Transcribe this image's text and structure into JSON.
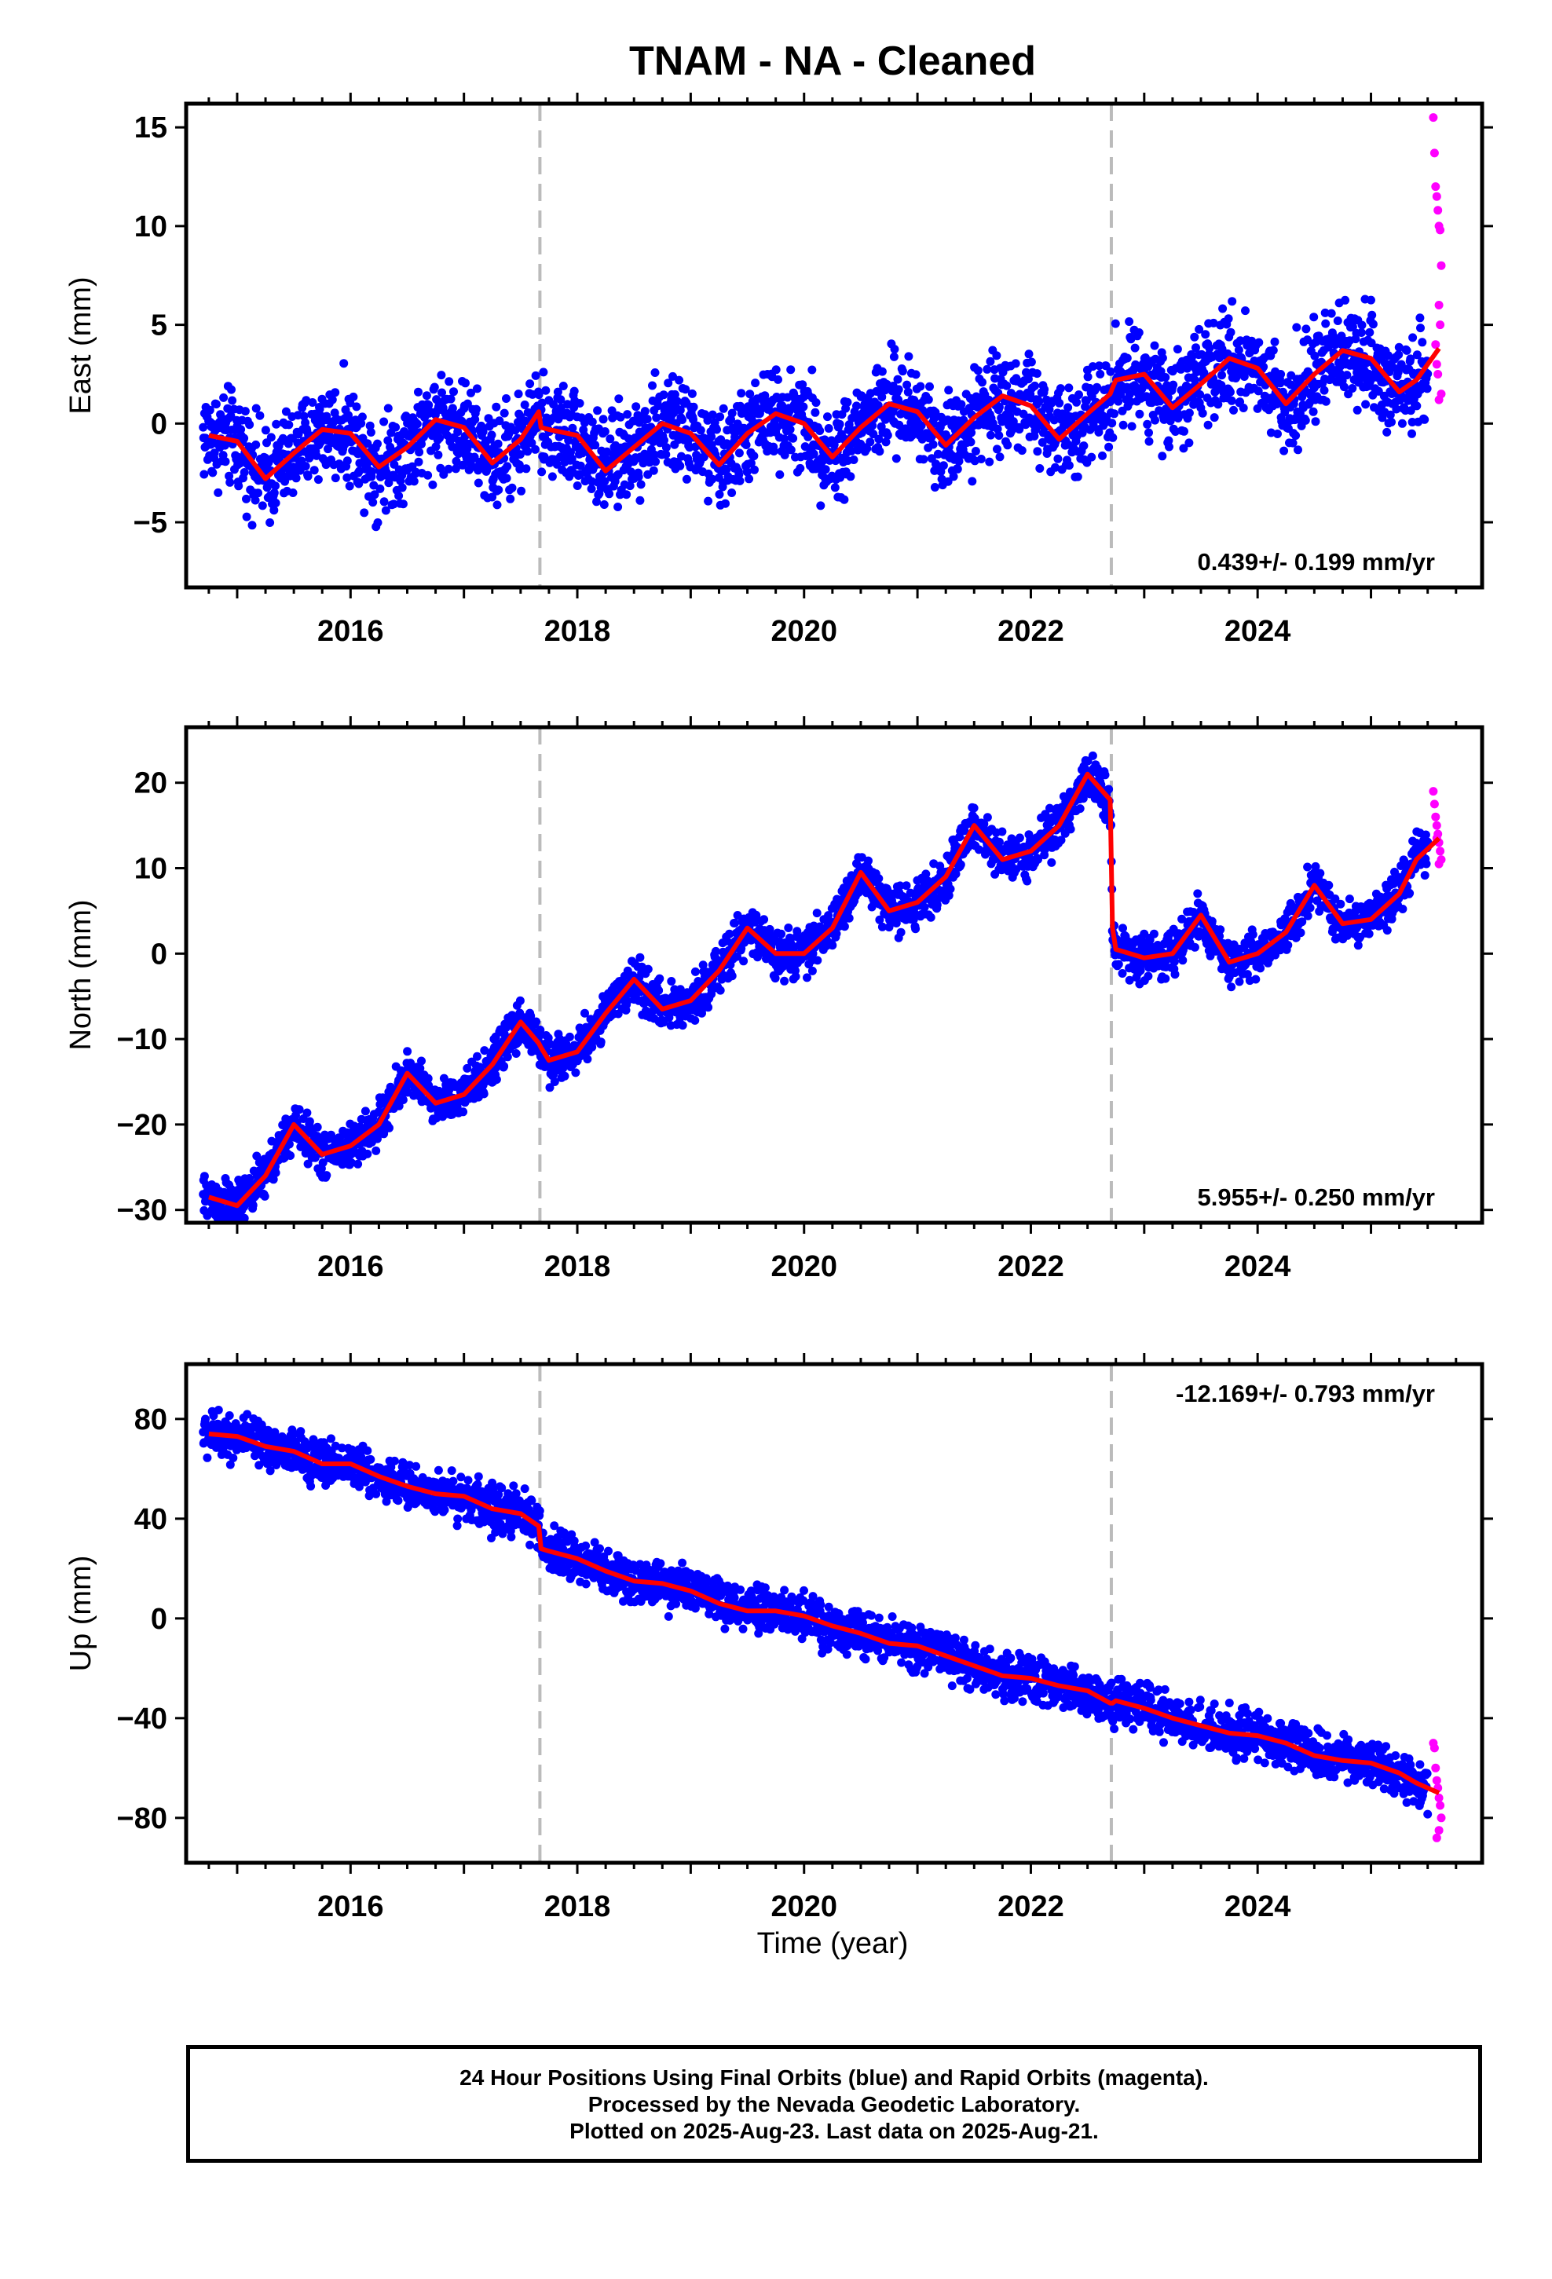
{
  "title": "TNAM  - NA - Cleaned",
  "xlabel": "Time (year)",
  "colors": {
    "final": "#0000ff",
    "rapid": "#ff00ff",
    "model": "#ff0000",
    "steps": "#bbbbbb",
    "frame": "#000000"
  },
  "footer": {
    "line1": "24 Hour Positions Using Final Orbits (blue) and Rapid Orbits (magenta).",
    "line2": "Processed by the Nevada Geodetic Laboratory.",
    "line3": "Plotted on 2025-Aug-23. Last data on 2025-Aug-21."
  },
  "chart_data": [
    {
      "type": "scatter",
      "title": "TNAM  - NA - Cleaned",
      "ylabel": "East (mm)",
      "xlabel": "",
      "xlim": [
        2014.55,
        2025.98
      ],
      "ylim": [
        -8.3,
        16.2
      ],
      "xticks": [
        2016,
        2018,
        2020,
        2022,
        2024
      ],
      "xtick_labels": [
        "2016",
        "2018",
        "2020",
        "2022",
        "2024"
      ],
      "yticks": [
        -5,
        0,
        5,
        10,
        15
      ],
      "ytick_labels": [
        "−5",
        "0",
        "5",
        "10",
        "15"
      ],
      "rate_label": "0.439+/- 0.199 mm/yr",
      "rate_position": "bottom-right",
      "step_epochs": [
        2017.67,
        2022.71
      ],
      "model": {
        "name": "model",
        "x": [
          2014.75,
          2015.0,
          2015.25,
          2015.5,
          2015.75,
          2016.0,
          2016.25,
          2016.5,
          2016.75,
          2017.0,
          2017.25,
          2017.5,
          2017.66,
          2017.68,
          2017.75,
          2018.0,
          2018.25,
          2018.5,
          2018.75,
          2019.0,
          2019.25,
          2019.5,
          2019.75,
          2020.0,
          2020.25,
          2020.5,
          2020.75,
          2021.0,
          2021.25,
          2021.5,
          2021.75,
          2022.0,
          2022.25,
          2022.5,
          2022.7,
          2022.72,
          2022.75,
          2023.0,
          2023.25,
          2023.5,
          2023.75,
          2024.0,
          2024.25,
          2024.5,
          2024.75,
          2025.0,
          2025.25,
          2025.4,
          2025.6
        ],
        "y": [
          -0.6,
          -0.9,
          -2.8,
          -1.5,
          -0.3,
          -0.5,
          -2.2,
          -1.2,
          0.2,
          -0.2,
          -2.0,
          -0.8,
          0.6,
          -0.2,
          -0.3,
          -0.6,
          -2.4,
          -1.2,
          0.0,
          -0.5,
          -2.1,
          -0.5,
          0.5,
          0.0,
          -1.7,
          -0.2,
          1.0,
          0.6,
          -1.1,
          0.3,
          1.4,
          0.9,
          -0.8,
          0.5,
          1.5,
          1.8,
          2.2,
          2.5,
          0.8,
          2.0,
          3.3,
          2.8,
          1.0,
          2.5,
          3.7,
          3.3,
          1.6,
          2.2,
          3.8
        ]
      },
      "final_series": {
        "name": "Final Orbits",
        "t_start": 2014.7,
        "t_end": 2025.5,
        "noise_mm": 1.2,
        "count": 2700
      },
      "rapid_series": {
        "name": "Rapid Orbits",
        "x": [
          2025.55,
          2025.56,
          2025.57,
          2025.58,
          2025.59,
          2025.6,
          2025.61,
          2025.62,
          2025.6,
          2025.61,
          2025.57,
          2025.58,
          2025.59,
          2025.62,
          2025.6
        ],
        "y": [
          15.5,
          13.7,
          12.0,
          11.5,
          10.8,
          10.0,
          9.8,
          8.0,
          6.0,
          5.0,
          4.0,
          3.0,
          2.5,
          1.5,
          1.2
        ]
      }
    },
    {
      "type": "scatter",
      "ylabel": "North (mm)",
      "xlabel": "",
      "xlim": [
        2014.55,
        2025.98
      ],
      "ylim": [
        -31.5,
        26.5
      ],
      "xticks": [
        2016,
        2018,
        2020,
        2022,
        2024
      ],
      "xtick_labels": [
        "2016",
        "2018",
        "2020",
        "2022",
        "2024"
      ],
      "yticks": [
        -30,
        -20,
        -10,
        0,
        10,
        20
      ],
      "ytick_labels": [
        "−30",
        "−20",
        "−10",
        "0",
        "10",
        "20"
      ],
      "rate_label": "5.955+/- 0.250 mm/yr",
      "rate_position": "bottom-right",
      "step_epochs": [
        2017.67,
        2022.71
      ],
      "model": {
        "name": "model",
        "x": [
          2014.75,
          2015.0,
          2015.25,
          2015.5,
          2015.75,
          2016.0,
          2016.25,
          2016.5,
          2016.75,
          2017.0,
          2017.25,
          2017.5,
          2017.66,
          2017.68,
          2017.75,
          2018.0,
          2018.25,
          2018.5,
          2018.75,
          2019.0,
          2019.25,
          2019.5,
          2019.75,
          2020.0,
          2020.25,
          2020.5,
          2020.75,
          2021.0,
          2021.25,
          2021.5,
          2021.75,
          2022.0,
          2022.25,
          2022.5,
          2022.7,
          2022.72,
          2022.75,
          2023.0,
          2023.25,
          2023.5,
          2023.75,
          2024.0,
          2024.25,
          2024.5,
          2024.75,
          2025.0,
          2025.25,
          2025.4,
          2025.6
        ],
        "y": [
          -28.5,
          -29.5,
          -26.0,
          -20.0,
          -23.5,
          -22.5,
          -20.0,
          -14.0,
          -17.5,
          -16.5,
          -13.0,
          -8.0,
          -10.5,
          -11.0,
          -12.5,
          -11.5,
          -7.0,
          -3.0,
          -6.5,
          -5.5,
          -2.0,
          3.0,
          0.0,
          0.0,
          3.0,
          9.5,
          5.0,
          6.0,
          9.0,
          15.0,
          11.0,
          12.0,
          15.0,
          21.0,
          18.0,
          3.0,
          0.5,
          -0.5,
          0.0,
          4.5,
          -1.0,
          0.0,
          2.5,
          8.0,
          3.5,
          4.0,
          7.0,
          11.0,
          13.5
        ]
      },
      "final_series": {
        "name": "Final Orbits",
        "t_start": 2014.7,
        "t_end": 2025.5,
        "noise_mm": 1.3,
        "count": 2700
      },
      "rapid_series": {
        "name": "Rapid Orbits",
        "x": [
          2025.55,
          2025.56,
          2025.57,
          2025.58,
          2025.59,
          2025.6,
          2025.61,
          2025.62,
          2025.6,
          2025.58
        ],
        "y": [
          19.0,
          17.5,
          16.0,
          15.0,
          14.0,
          13.0,
          12.0,
          11.0,
          10.5,
          13.5
        ]
      }
    },
    {
      "type": "scatter",
      "ylabel": "Up (mm)",
      "xlabel": "Time (year)",
      "xlim": [
        2014.55,
        2025.98
      ],
      "ylim": [
        -98,
        102
      ],
      "xticks": [
        2016,
        2018,
        2020,
        2022,
        2024
      ],
      "xtick_labels": [
        "2016",
        "2018",
        "2020",
        "2022",
        "2024"
      ],
      "yticks": [
        -80,
        -40,
        0,
        40,
        80
      ],
      "ytick_labels": [
        "−80",
        "−40",
        "0",
        "40",
        "80"
      ],
      "rate_label": "-12.169+/- 0.793 mm/yr",
      "rate_position": "top-right",
      "step_epochs": [
        2017.67,
        2022.71
      ],
      "model": {
        "name": "model",
        "x": [
          2014.75,
          2015.0,
          2015.25,
          2015.5,
          2015.75,
          2016.0,
          2016.25,
          2016.5,
          2016.75,
          2017.0,
          2017.25,
          2017.5,
          2017.66,
          2017.68,
          2017.75,
          2018.0,
          2018.25,
          2018.5,
          2018.75,
          2019.0,
          2019.25,
          2019.5,
          2019.75,
          2020.0,
          2020.25,
          2020.5,
          2020.75,
          2021.0,
          2021.25,
          2021.5,
          2021.75,
          2022.0,
          2022.25,
          2022.5,
          2022.7,
          2022.72,
          2022.75,
          2023.0,
          2023.25,
          2023.5,
          2023.75,
          2024.0,
          2024.25,
          2024.5,
          2024.75,
          2025.0,
          2025.25,
          2025.4,
          2025.6
        ],
        "y": [
          74,
          73,
          69,
          67,
          62,
          62,
          57,
          53,
          50,
          49,
          44,
          42,
          37,
          28,
          27,
          24,
          19,
          15,
          14,
          11,
          6,
          3,
          3,
          1,
          -3,
          -6,
          -10,
          -11,
          -15,
          -19,
          -23,
          -24,
          -27,
          -29,
          -34,
          -34,
          -33,
          -36,
          -40,
          -43,
          -46,
          -47,
          -50,
          -55,
          -57,
          -58,
          -62,
          -66,
          -70
        ]
      },
      "final_series": {
        "name": "Final Orbits",
        "t_start": 2014.7,
        "t_end": 2025.5,
        "noise_mm": 4.5,
        "count": 2700
      },
      "rapid_series": {
        "name": "Rapid Orbits",
        "x": [
          2025.55,
          2025.56,
          2025.57,
          2025.58,
          2025.59,
          2025.6,
          2025.61,
          2025.62,
          2025.6,
          2025.58
        ],
        "y": [
          -50,
          -52,
          -60,
          -65,
          -68,
          -72,
          -75,
          -80,
          -85,
          -88
        ]
      }
    }
  ]
}
